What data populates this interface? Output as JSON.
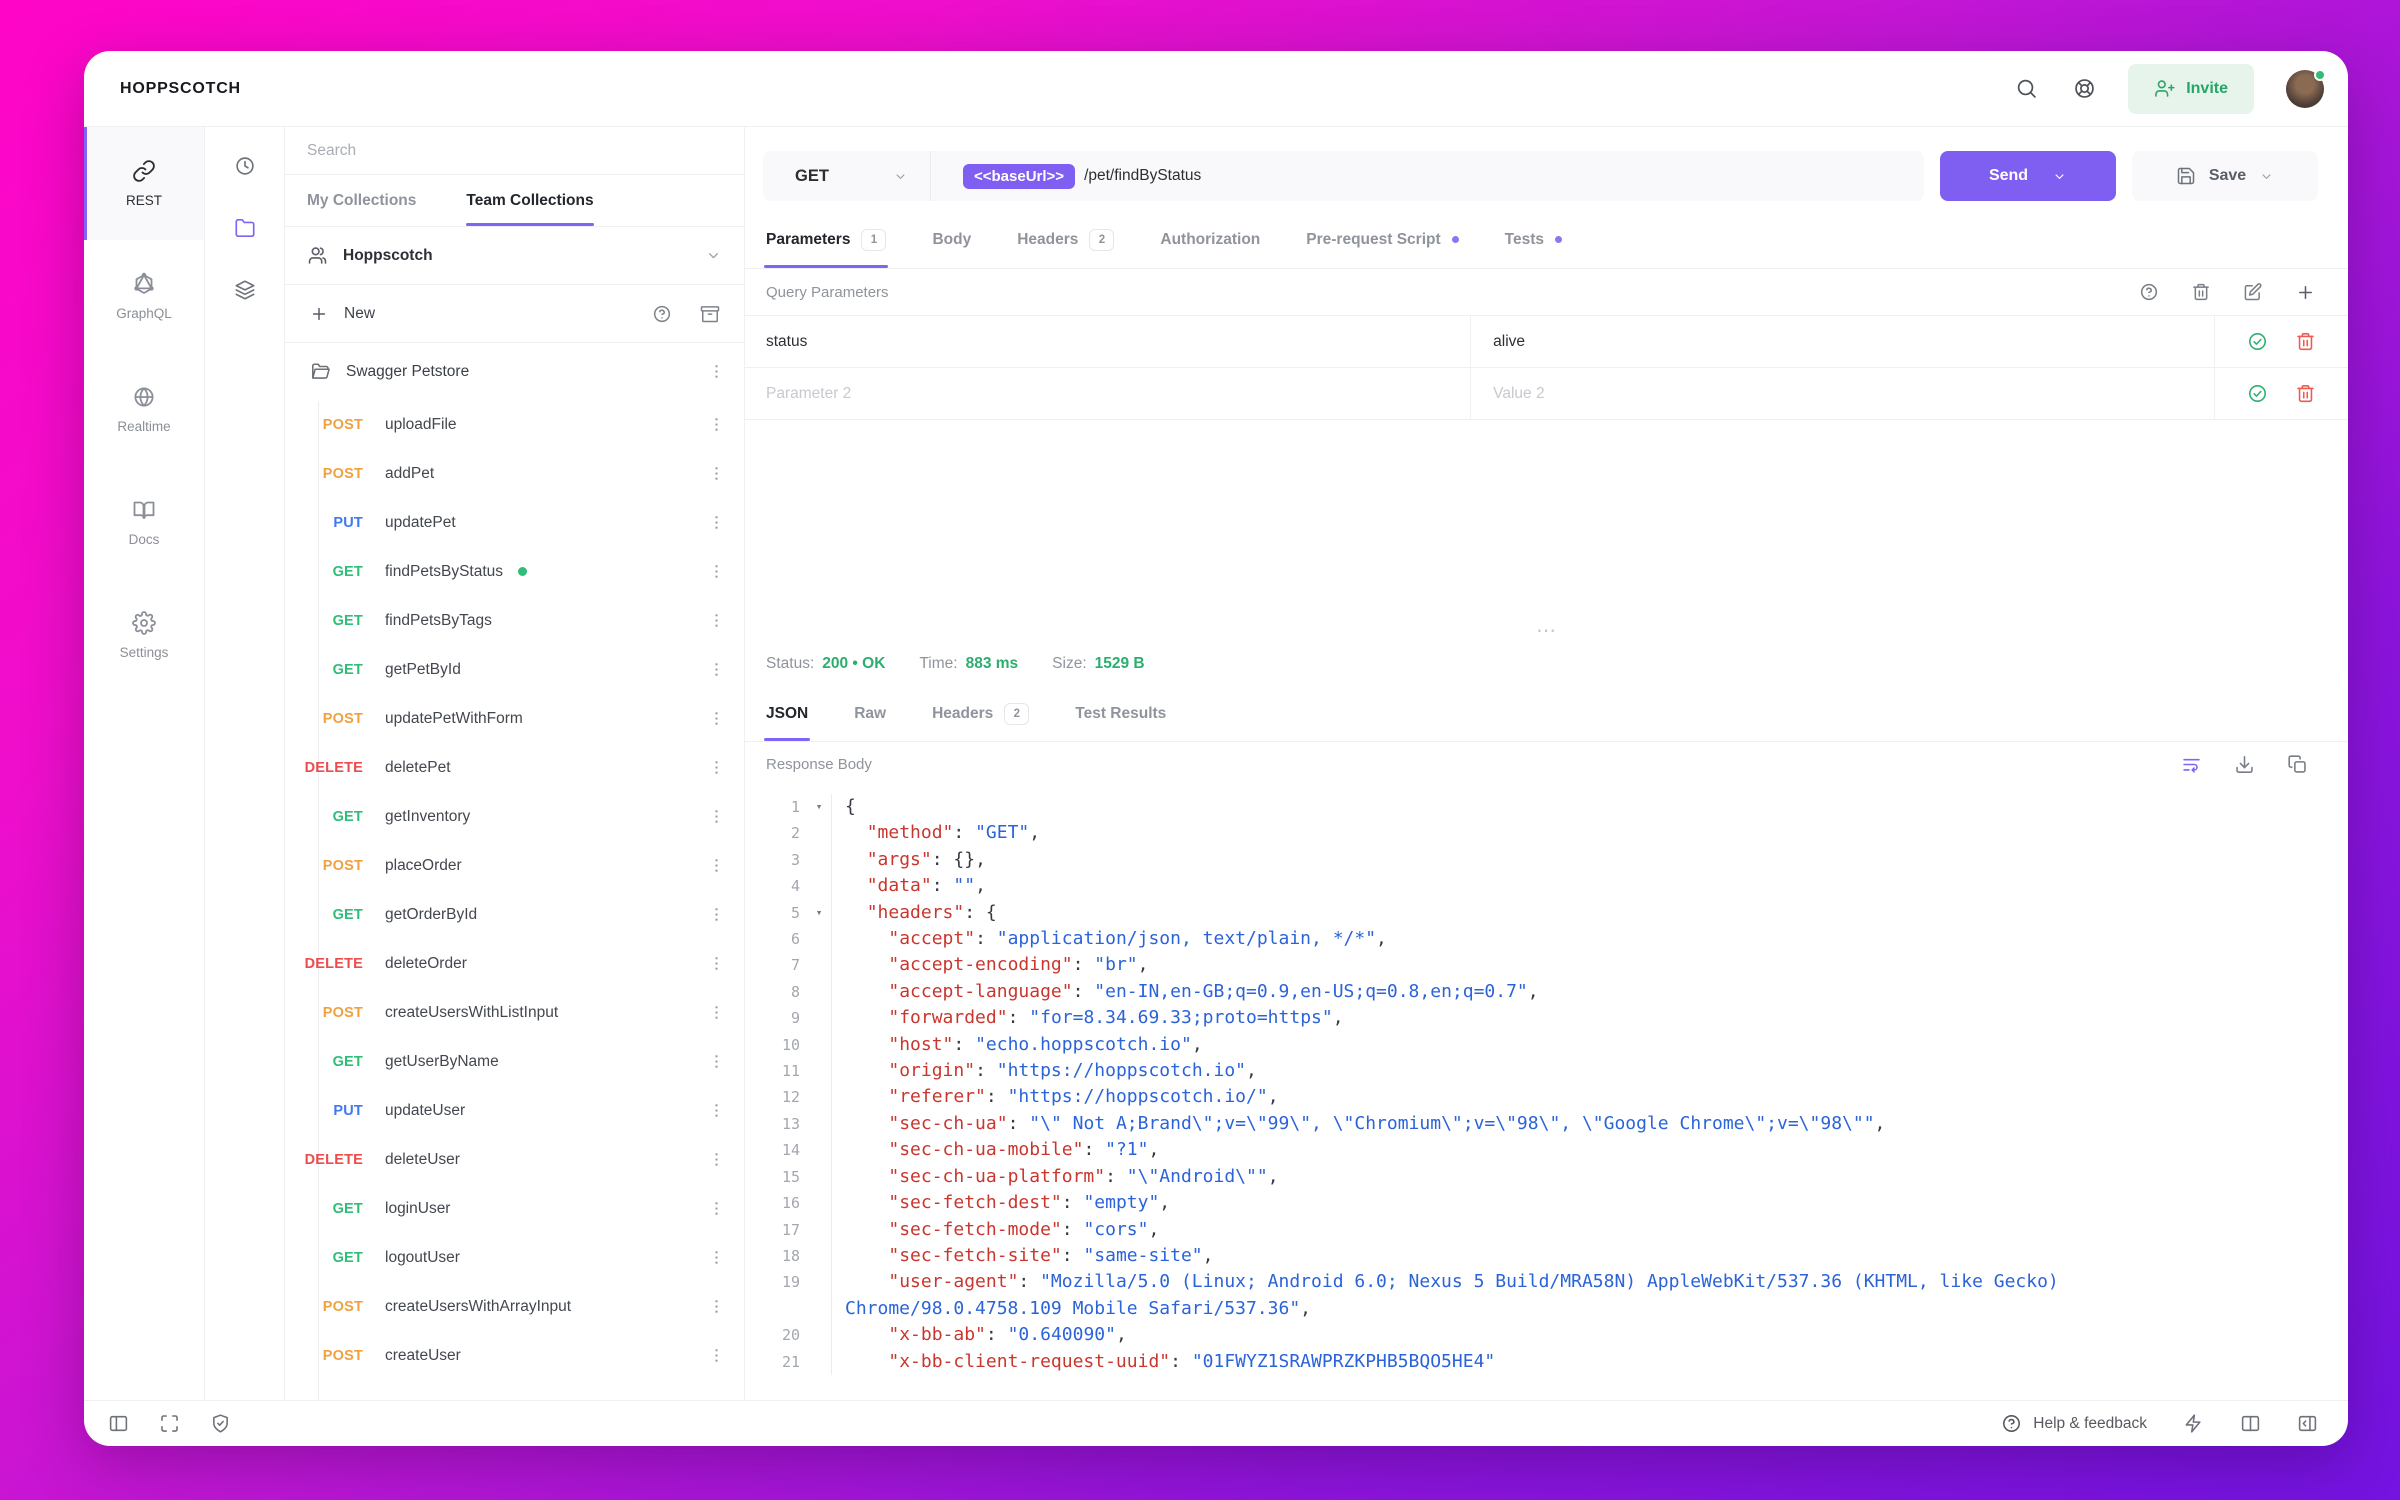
{
  "window": {
    "brand": "HOPPSCOTCH"
  },
  "topbar": {
    "invite_label": "Invite"
  },
  "colors": {
    "accent": "#7e5ff2",
    "success": "#2fbd78",
    "method_get": "#2fbd78",
    "method_post": "#f0a13e",
    "method_put": "#4077f3",
    "method_delete": "#ec4c4c"
  },
  "nav": {
    "items": [
      {
        "id": "rest",
        "label": "REST",
        "icon": "link",
        "active": true
      },
      {
        "id": "graphql",
        "label": "GraphQL",
        "icon": "graphql",
        "active": false
      },
      {
        "id": "realtime",
        "label": "Realtime",
        "icon": "globe",
        "active": false
      },
      {
        "id": "docs",
        "label": "Docs",
        "icon": "book",
        "active": false
      },
      {
        "id": "settings",
        "label": "Settings",
        "icon": "gear",
        "active": false
      }
    ]
  },
  "collections": {
    "search_placeholder": "Search",
    "tabs": [
      {
        "label": "My Collections",
        "active": false
      },
      {
        "label": "Team Collections",
        "active": true
      }
    ],
    "team_name": "Hoppscotch",
    "new_label": "New",
    "tree": [
      {
        "type": "folder",
        "name": "Swagger Petstore"
      },
      {
        "type": "request",
        "method": "POST",
        "name": "uploadFile"
      },
      {
        "type": "request",
        "method": "POST",
        "name": "addPet"
      },
      {
        "type": "request",
        "method": "PUT",
        "name": "updatePet"
      },
      {
        "type": "request",
        "method": "GET",
        "name": "findPetsByStatus",
        "active": true
      },
      {
        "type": "request",
        "method": "GET",
        "name": "findPetsByTags"
      },
      {
        "type": "request",
        "method": "GET",
        "name": "getPetById"
      },
      {
        "type": "request",
        "method": "POST",
        "name": "updatePetWithForm"
      },
      {
        "type": "request",
        "method": "DELETE",
        "name": "deletePet"
      },
      {
        "type": "request",
        "method": "GET",
        "name": "getInventory"
      },
      {
        "type": "request",
        "method": "POST",
        "name": "placeOrder"
      },
      {
        "type": "request",
        "method": "GET",
        "name": "getOrderById"
      },
      {
        "type": "request",
        "method": "DELETE",
        "name": "deleteOrder"
      },
      {
        "type": "request",
        "method": "POST",
        "name": "createUsersWithListInput"
      },
      {
        "type": "request",
        "method": "GET",
        "name": "getUserByName"
      },
      {
        "type": "request",
        "method": "PUT",
        "name": "updateUser"
      },
      {
        "type": "request",
        "method": "DELETE",
        "name": "deleteUser"
      },
      {
        "type": "request",
        "method": "GET",
        "name": "loginUser"
      },
      {
        "type": "request",
        "method": "GET",
        "name": "logoutUser"
      },
      {
        "type": "request",
        "method": "POST",
        "name": "createUsersWithArrayInput"
      },
      {
        "type": "request",
        "method": "POST",
        "name": "createUser"
      },
      {
        "type": "folder",
        "name": "",
        "partial": true
      }
    ]
  },
  "request": {
    "method": "GET",
    "base_url_chip": "<<baseUrl>>",
    "path": "/pet/findByStatus",
    "send_label": "Send",
    "save_label": "Save",
    "tabs": [
      {
        "label": "Parameters",
        "badge": "1",
        "active": true
      },
      {
        "label": "Body"
      },
      {
        "label": "Headers",
        "badge": "2"
      },
      {
        "label": "Authorization"
      },
      {
        "label": "Pre-request Script",
        "dot": true
      },
      {
        "label": "Tests",
        "dot": true
      }
    ],
    "section_title": "Query Parameters",
    "params": [
      {
        "key": "status",
        "value": "alive",
        "placeholder": false
      },
      {
        "key": "Parameter 2",
        "value": "Value 2",
        "placeholder": true
      }
    ]
  },
  "response": {
    "meta": {
      "status_label": "Status:",
      "status": "200 • OK",
      "time_label": "Time:",
      "time": "883 ms",
      "size_label": "Size:",
      "size": "1529 B"
    },
    "tabs": [
      {
        "label": "JSON",
        "active": true
      },
      {
        "label": "Raw"
      },
      {
        "label": "Headers",
        "badge": "2"
      },
      {
        "label": "Test Results"
      }
    ],
    "body_label": "Response Body",
    "code": [
      {
        "n": 1,
        "fold": true,
        "parts": [
          [
            "p",
            "{"
          ]
        ]
      },
      {
        "n": 2,
        "parts": [
          [
            "p",
            "  "
          ],
          [
            "k",
            "\"method\""
          ],
          [
            "p",
            ": "
          ],
          [
            "s",
            "\"GET\""
          ],
          [
            "p",
            ","
          ]
        ]
      },
      {
        "n": 3,
        "parts": [
          [
            "p",
            "  "
          ],
          [
            "k",
            "\"args\""
          ],
          [
            "p",
            ": {},"
          ]
        ]
      },
      {
        "n": 4,
        "parts": [
          [
            "p",
            "  "
          ],
          [
            "k",
            "\"data\""
          ],
          [
            "p",
            ": "
          ],
          [
            "s",
            "\"\""
          ],
          [
            "p",
            ","
          ]
        ]
      },
      {
        "n": 5,
        "fold": true,
        "parts": [
          [
            "p",
            "  "
          ],
          [
            "k",
            "\"headers\""
          ],
          [
            "p",
            ": {"
          ]
        ]
      },
      {
        "n": 6,
        "parts": [
          [
            "p",
            "    "
          ],
          [
            "k",
            "\"accept\""
          ],
          [
            "p",
            ": "
          ],
          [
            "s",
            "\"application/json, text/plain, */*\""
          ],
          [
            "p",
            ","
          ]
        ]
      },
      {
        "n": 7,
        "parts": [
          [
            "p",
            "    "
          ],
          [
            "k",
            "\"accept-encoding\""
          ],
          [
            "p",
            ": "
          ],
          [
            "s",
            "\"br\""
          ],
          [
            "p",
            ","
          ]
        ]
      },
      {
        "n": 8,
        "parts": [
          [
            "p",
            "    "
          ],
          [
            "k",
            "\"accept-language\""
          ],
          [
            "p",
            ": "
          ],
          [
            "s",
            "\"en-IN,en-GB;q=0.9,en-US;q=0.8,en;q=0.7\""
          ],
          [
            "p",
            ","
          ]
        ]
      },
      {
        "n": 9,
        "parts": [
          [
            "p",
            "    "
          ],
          [
            "k",
            "\"forwarded\""
          ],
          [
            "p",
            ": "
          ],
          [
            "s",
            "\"for=8.34.69.33;proto=https\""
          ],
          [
            "p",
            ","
          ]
        ]
      },
      {
        "n": 10,
        "parts": [
          [
            "p",
            "    "
          ],
          [
            "k",
            "\"host\""
          ],
          [
            "p",
            ": "
          ],
          [
            "s",
            "\"echo.hoppscotch.io\""
          ],
          [
            "p",
            ","
          ]
        ]
      },
      {
        "n": 11,
        "parts": [
          [
            "p",
            "    "
          ],
          [
            "k",
            "\"origin\""
          ],
          [
            "p",
            ": "
          ],
          [
            "s",
            "\"https://hoppscotch.io\""
          ],
          [
            "p",
            ","
          ]
        ]
      },
      {
        "n": 12,
        "parts": [
          [
            "p",
            "    "
          ],
          [
            "k",
            "\"referer\""
          ],
          [
            "p",
            ": "
          ],
          [
            "s",
            "\"https://hoppscotch.io/\""
          ],
          [
            "p",
            ","
          ]
        ]
      },
      {
        "n": 13,
        "parts": [
          [
            "p",
            "    "
          ],
          [
            "k",
            "\"sec-ch-ua\""
          ],
          [
            "p",
            ": "
          ],
          [
            "s",
            "\"\\\" Not A;Brand\\\";v=\\\"99\\\", \\\"Chromium\\\";v=\\\"98\\\", \\\"Google Chrome\\\";v=\\\"98\\\"\""
          ],
          [
            "p",
            ","
          ]
        ]
      },
      {
        "n": 14,
        "parts": [
          [
            "p",
            "    "
          ],
          [
            "k",
            "\"sec-ch-ua-mobile\""
          ],
          [
            "p",
            ": "
          ],
          [
            "s",
            "\"?1\""
          ],
          [
            "p",
            ","
          ]
        ]
      },
      {
        "n": 15,
        "parts": [
          [
            "p",
            "    "
          ],
          [
            "k",
            "\"sec-ch-ua-platform\""
          ],
          [
            "p",
            ": "
          ],
          [
            "s",
            "\"\\\"Android\\\"\""
          ],
          [
            "p",
            ","
          ]
        ]
      },
      {
        "n": 16,
        "parts": [
          [
            "p",
            "    "
          ],
          [
            "k",
            "\"sec-fetch-dest\""
          ],
          [
            "p",
            ": "
          ],
          [
            "s",
            "\"empty\""
          ],
          [
            "p",
            ","
          ]
        ]
      },
      {
        "n": 17,
        "parts": [
          [
            "p",
            "    "
          ],
          [
            "k",
            "\"sec-fetch-mode\""
          ],
          [
            "p",
            ": "
          ],
          [
            "s",
            "\"cors\""
          ],
          [
            "p",
            ","
          ]
        ]
      },
      {
        "n": 18,
        "parts": [
          [
            "p",
            "    "
          ],
          [
            "k",
            "\"sec-fetch-site\""
          ],
          [
            "p",
            ": "
          ],
          [
            "s",
            "\"same-site\""
          ],
          [
            "p",
            ","
          ]
        ]
      },
      {
        "n": 19,
        "parts": [
          [
            "p",
            "    "
          ],
          [
            "k",
            "\"user-agent\""
          ],
          [
            "p",
            ": "
          ],
          [
            "s",
            "\"Mozilla/5.0 (Linux; Android 6.0; Nexus 5 Build/MRA58N) AppleWebKit/537.36 (KHTML, like Gecko) Chrome/98.0.4758.109 Mobile Safari/537.36\""
          ],
          [
            "p",
            ","
          ]
        ]
      },
      {
        "n": 20,
        "parts": [
          [
            "p",
            "    "
          ],
          [
            "k",
            "\"x-bb-ab\""
          ],
          [
            "p",
            ": "
          ],
          [
            "s",
            "\"0.640090\""
          ],
          [
            "p",
            ","
          ]
        ]
      },
      {
        "n": 21,
        "parts": [
          [
            "p",
            "    "
          ],
          [
            "k",
            "\"x-bb-client-request-uuid\""
          ],
          [
            "p",
            ": "
          ],
          [
            "s",
            "\"01FWYZ1SRAWPRZKPHB5BQO5HE4\""
          ]
        ]
      }
    ]
  },
  "footer": {
    "help_label": "Help & feedback"
  }
}
